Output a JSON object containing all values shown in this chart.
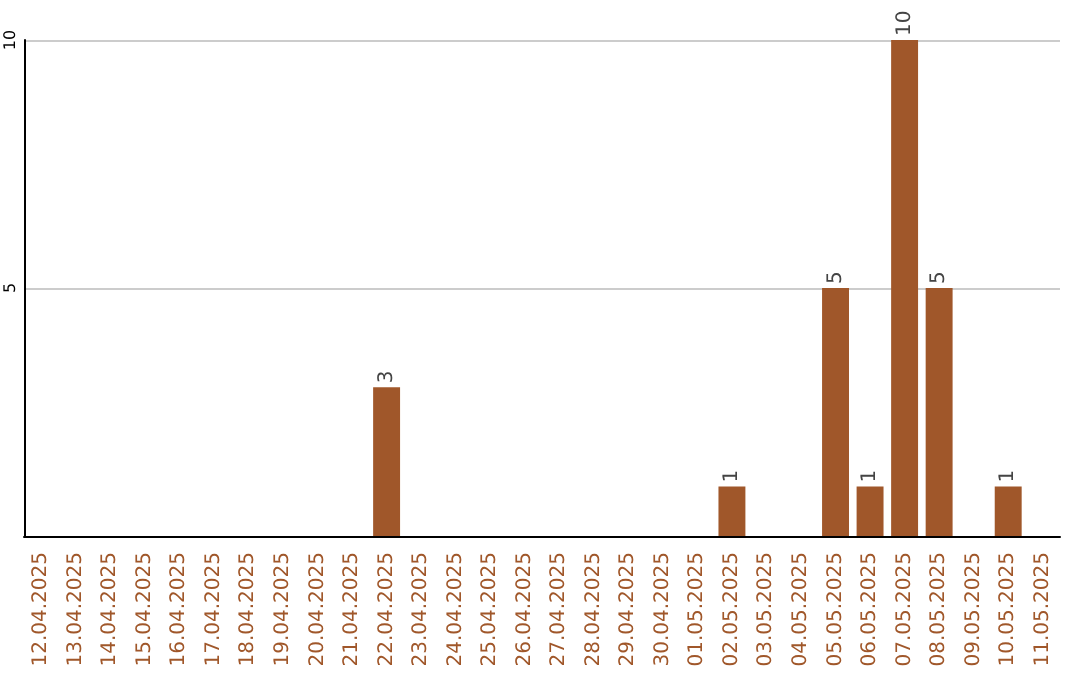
{
  "chart_data": {
    "type": "bar",
    "categories": [
      "12.04.2025",
      "13.04.2025",
      "14.04.2025",
      "15.04.2025",
      "16.04.2025",
      "17.04.2025",
      "18.04.2025",
      "19.04.2025",
      "20.04.2025",
      "21.04.2025",
      "22.04.2025",
      "23.04.2025",
      "24.04.2025",
      "25.04.2025",
      "26.04.2025",
      "27.04.2025",
      "28.04.2025",
      "29.04.2025",
      "30.04.2025",
      "01.05.2025",
      "02.05.2025",
      "03.05.2025",
      "04.05.2025",
      "05.05.2025",
      "06.05.2025",
      "07.05.2025",
      "08.05.2025",
      "09.05.2025",
      "10.05.2025",
      "11.05.2025"
    ],
    "values": [
      0,
      0,
      0,
      0,
      0,
      0,
      0,
      0,
      0,
      0,
      3,
      0,
      0,
      0,
      0,
      0,
      0,
      0,
      0,
      0,
      1,
      0,
      0,
      5,
      1,
      10,
      5,
      0,
      1,
      0
    ],
    "value_labels": [
      null,
      null,
      null,
      null,
      null,
      null,
      null,
      null,
      null,
      null,
      "3",
      null,
      null,
      null,
      null,
      null,
      null,
      null,
      null,
      null,
      "1",
      null,
      null,
      "5",
      "1",
      "10",
      "5",
      null,
      "1",
      null
    ],
    "color": "#a0572a",
    "ylim": [
      0,
      10
    ],
    "yticks": [
      5,
      10
    ],
    "grid": "y"
  }
}
